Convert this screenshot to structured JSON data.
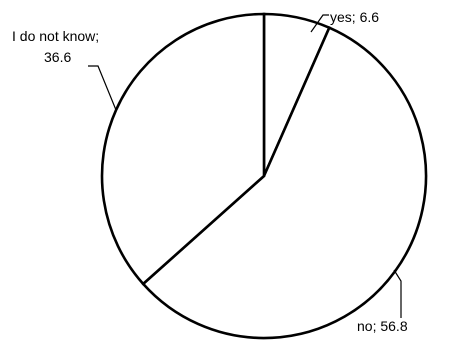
{
  "chart_data": {
    "type": "pie",
    "title": "",
    "slices": [
      {
        "label": "yes; 6.6",
        "value": 6.6
      },
      {
        "label": "no; 56.8",
        "value": 56.8
      },
      {
        "label": "I do not know;",
        "label_line2": "36.6",
        "value": 36.6
      }
    ],
    "start_angle": "12 o'clock",
    "direction": "clockwise",
    "fill_color": "#ffffff",
    "stroke_color": "#000000",
    "legend": "none"
  }
}
